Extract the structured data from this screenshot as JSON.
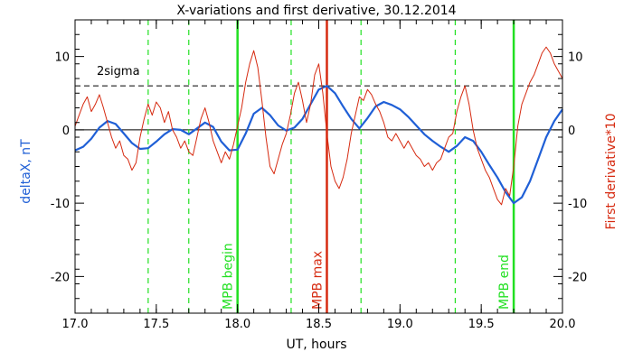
{
  "chart_data": {
    "type": "line",
    "title": "X-variations and first derivative, 30.12.2014",
    "xlabel": "UT, hours",
    "ylabel_left": "deltaX, nT",
    "ylabel_right": "First derivative*10",
    "xlim": [
      17.0,
      20.0
    ],
    "ylim": [
      -25,
      15
    ],
    "x_ticks": [
      17.0,
      17.5,
      18.0,
      18.5,
      19.0,
      19.5,
      20.0
    ],
    "x_tick_labels": [
      "17.0",
      "17.5",
      "18.0",
      "18.5",
      "19.0",
      "19.5",
      "20.0"
    ],
    "y_ticks": [
      10,
      0,
      -10,
      -20
    ],
    "y_tick_labels": [
      "10",
      "0",
      "-10",
      "-20"
    ],
    "grid": false,
    "threshold": {
      "label": "2sigma",
      "y": 6
    },
    "zero_line": 0,
    "colors": {
      "blue": "#1f5fd6",
      "red": "#d62a10",
      "green": "#22e022",
      "black": "#000000"
    },
    "series": [
      {
        "name": "deltaX, nT",
        "axis": "left",
        "color": "#1f5fd6",
        "x": [
          17.0,
          17.05,
          17.1,
          17.15,
          17.2,
          17.25,
          17.3,
          17.35,
          17.4,
          17.45,
          17.5,
          17.55,
          17.6,
          17.65,
          17.7,
          17.75,
          17.8,
          17.85,
          17.9,
          17.95,
          18.0,
          18.05,
          18.1,
          18.15,
          18.2,
          18.25,
          18.3,
          18.35,
          18.4,
          18.45,
          18.5,
          18.55,
          18.6,
          18.65,
          18.7,
          18.75,
          18.8,
          18.85,
          18.9,
          18.95,
          19.0,
          19.05,
          19.1,
          19.15,
          19.2,
          19.25,
          19.3,
          19.35,
          19.4,
          19.45,
          19.5,
          19.55,
          19.6,
          19.65,
          19.7,
          19.75,
          19.8,
          19.85,
          19.9,
          19.95,
          20.0
        ],
        "values": [
          -2.8,
          -2.3,
          -1.2,
          0.3,
          1.2,
          0.8,
          -0.5,
          -1.8,
          -2.6,
          -2.5,
          -1.6,
          -0.6,
          0.1,
          0.0,
          -0.6,
          0.2,
          1.0,
          0.4,
          -1.6,
          -2.8,
          -2.7,
          -0.5,
          2.2,
          3.0,
          2.0,
          0.6,
          -0.1,
          0.3,
          1.5,
          3.5,
          5.5,
          6.0,
          5.0,
          3.2,
          1.5,
          0.2,
          1.6,
          3.2,
          3.8,
          3.4,
          2.8,
          1.8,
          0.6,
          -0.6,
          -1.5,
          -2.3,
          -3.0,
          -2.2,
          -1.0,
          -1.5,
          -3.0,
          -4.8,
          -6.5,
          -8.5,
          -10.0,
          -9.2,
          -7.0,
          -4.0,
          -1.0,
          1.2,
          2.8
        ]
      },
      {
        "name": "First derivative*10",
        "axis": "right",
        "color": "#d62a10",
        "x": [
          17.0,
          17.025,
          17.05,
          17.075,
          17.1,
          17.125,
          17.15,
          17.175,
          17.2,
          17.225,
          17.25,
          17.275,
          17.3,
          17.325,
          17.35,
          17.375,
          17.4,
          17.425,
          17.45,
          17.475,
          17.5,
          17.525,
          17.55,
          17.575,
          17.6,
          17.625,
          17.65,
          17.675,
          17.7,
          17.725,
          17.75,
          17.775,
          17.8,
          17.825,
          17.85,
          17.875,
          17.9,
          17.925,
          17.95,
          17.975,
          18.0,
          18.025,
          18.05,
          18.075,
          18.1,
          18.125,
          18.15,
          18.175,
          18.2,
          18.225,
          18.25,
          18.275,
          18.3,
          18.325,
          18.35,
          18.375,
          18.4,
          18.425,
          18.45,
          18.475,
          18.5,
          18.525,
          18.55,
          18.575,
          18.6,
          18.625,
          18.65,
          18.675,
          18.7,
          18.725,
          18.75,
          18.775,
          18.8,
          18.825,
          18.85,
          18.875,
          18.9,
          18.925,
          18.95,
          18.975,
          19.0,
          19.025,
          19.05,
          19.075,
          19.1,
          19.125,
          19.15,
          19.175,
          19.2,
          19.225,
          19.25,
          19.275,
          19.3,
          19.325,
          19.35,
          19.375,
          19.4,
          19.425,
          19.45,
          19.475,
          19.5,
          19.525,
          19.55,
          19.575,
          19.6,
          19.625,
          19.65,
          19.675,
          19.7,
          19.725,
          19.75,
          19.775,
          19.8,
          19.825,
          19.85,
          19.875,
          19.9,
          19.925,
          19.95,
          19.975,
          20.0
        ],
        "values": [
          0.5,
          2.0,
          3.5,
          4.5,
          2.5,
          3.5,
          4.8,
          3.0,
          1.0,
          -1.0,
          -2.5,
          -1.5,
          -3.5,
          -4.0,
          -5.5,
          -4.5,
          -1.0,
          1.5,
          3.5,
          2.0,
          3.8,
          3.0,
          1.0,
          2.5,
          0.0,
          -1.0,
          -2.5,
          -1.5,
          -3.0,
          -3.5,
          -1.0,
          1.5,
          3.0,
          1.0,
          -1.5,
          -3.0,
          -4.5,
          -3.0,
          -4.0,
          -2.0,
          0.5,
          3.0,
          6.5,
          9.0,
          10.8,
          8.5,
          4.0,
          -1.0,
          -5.0,
          -6.0,
          -4.0,
          -2.0,
          -0.5,
          2.0,
          5.0,
          6.5,
          4.0,
          1.0,
          3.5,
          7.5,
          9.0,
          5.0,
          -0.5,
          -5.0,
          -7.0,
          -8.0,
          -6.5,
          -4.0,
          -0.5,
          2.0,
          4.5,
          4.0,
          5.5,
          4.8,
          3.5,
          2.5,
          1.0,
          -1.0,
          -1.5,
          -0.5,
          -1.5,
          -2.5,
          -1.5,
          -2.5,
          -3.5,
          -4.0,
          -5.0,
          -4.5,
          -5.5,
          -4.5,
          -4.0,
          -2.5,
          -1.0,
          -0.5,
          2.5,
          4.5,
          6.0,
          3.5,
          0.0,
          -2.5,
          -4.0,
          -5.5,
          -6.5,
          -8.0,
          -9.5,
          -10.2,
          -8.0,
          -9.0,
          -5.0,
          0.5,
          3.5,
          5.0,
          6.5,
          7.5,
          9.0,
          10.5,
          11.3,
          10.5,
          9.0,
          8.0,
          7.0
        ]
      }
    ],
    "vertical_lines": [
      {
        "x": 17.45,
        "style": "dashed",
        "color": "#22e022",
        "label": ""
      },
      {
        "x": 17.7,
        "style": "dashed",
        "color": "#22e022",
        "label": ""
      },
      {
        "x": 18.0,
        "style": "solid",
        "color": "#22e022",
        "label": "MPB begin"
      },
      {
        "x": 18.33,
        "style": "dashed",
        "color": "#22e022",
        "label": ""
      },
      {
        "x": 18.55,
        "style": "solid",
        "color": "#d62a10",
        "label": "MPB max"
      },
      {
        "x": 18.76,
        "style": "dashed",
        "color": "#22e022",
        "label": ""
      },
      {
        "x": 19.34,
        "style": "dashed",
        "color": "#22e022",
        "label": ""
      },
      {
        "x": 19.7,
        "style": "solid",
        "color": "#22e022",
        "label": "MPB end"
      }
    ]
  }
}
